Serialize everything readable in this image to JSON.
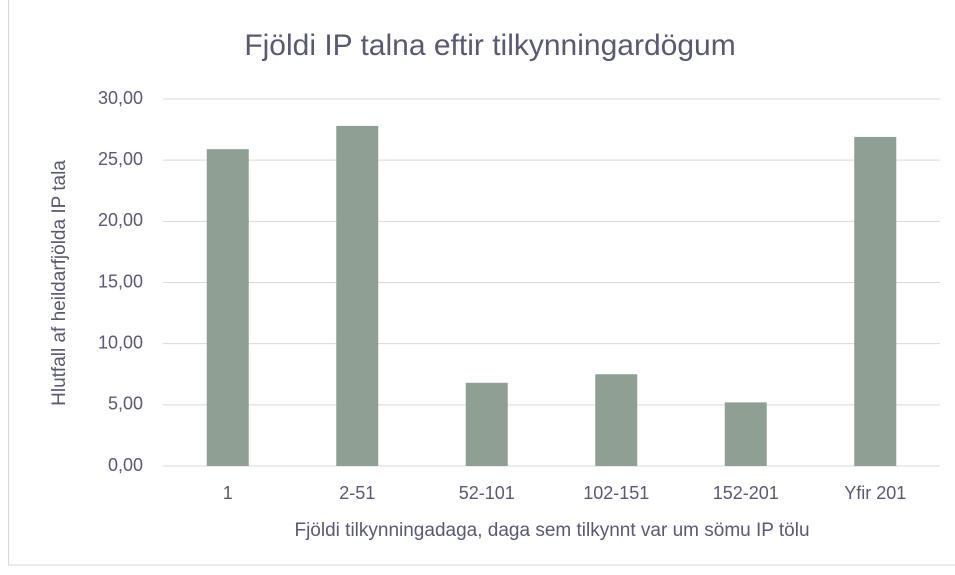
{
  "chart_data": {
    "type": "bar",
    "title": "Fjöldi IP talna eftir tilkynningardögum",
    "x_label": "Fjöldi tilkynningadaga, daga sem tilkynnt var um sömu IP tölu",
    "y_label": "Hlutfall af heildarfjölda IP tala",
    "categories": [
      "1",
      "2-51",
      "52-101",
      "102-151",
      "152-201",
      "Yfir 201"
    ],
    "values": [
      25.9,
      27.8,
      6.8,
      7.5,
      5.2,
      26.9
    ],
    "color": "#8f9f93",
    "ylim": [
      0,
      30
    ],
    "yticks": [
      {
        "value": 0,
        "label": "0,00"
      },
      {
        "value": 5,
        "label": "5,00"
      },
      {
        "value": 10,
        "label": "10,00"
      },
      {
        "value": 15,
        "label": "15,00"
      },
      {
        "value": 20,
        "label": "20,00"
      },
      {
        "value": 25,
        "label": "25,00"
      },
      {
        "value": 30,
        "label": "30,00"
      }
    ],
    "grid": true
  }
}
